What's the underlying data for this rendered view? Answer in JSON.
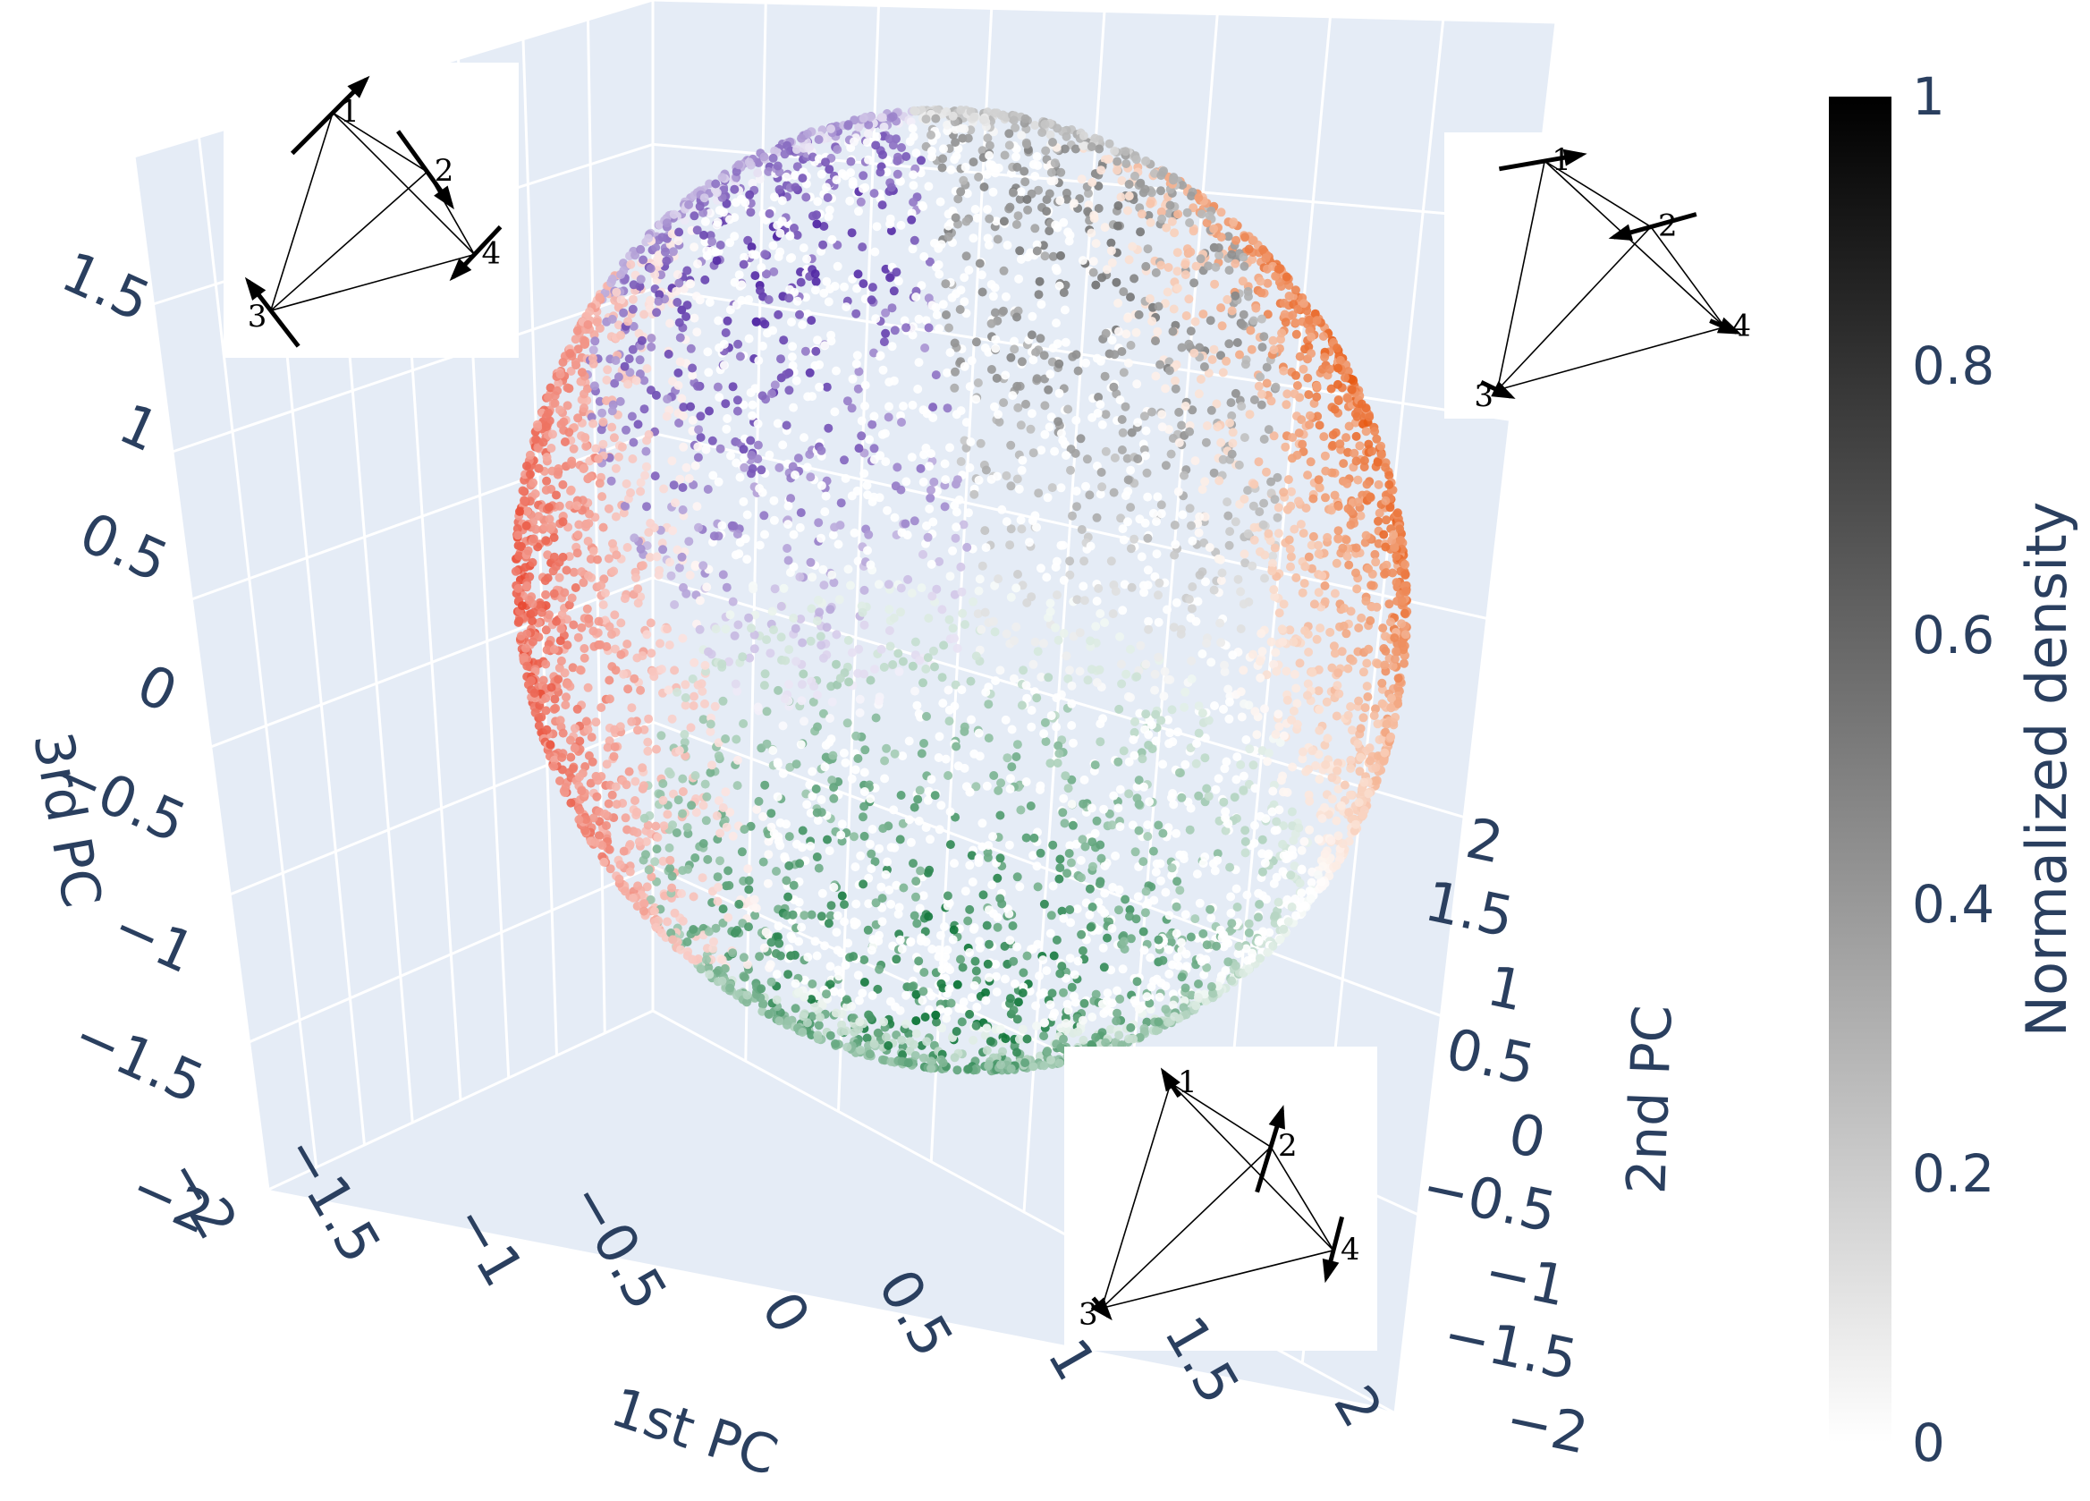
{
  "chart_data": {
    "type": "scatter",
    "dimensions": "3d",
    "axes": {
      "x": {
        "label": "1st PC",
        "range": [
          -2,
          2
        ],
        "ticks": [
          "−2",
          "−1.5",
          "−1",
          "−0.5",
          "0",
          "0.5",
          "1",
          "1.5",
          "2"
        ]
      },
      "y": {
        "label": "2nd PC",
        "range": [
          -2,
          2
        ],
        "ticks": [
          "−2",
          "−1.5",
          "−1",
          "−0.5",
          "0",
          "0.5",
          "1",
          "1.5",
          "2"
        ]
      },
      "z": {
        "label": "3rd PC",
        "range": [
          -2,
          1.5
        ],
        "ticks": [
          "−2",
          "−1.5",
          "−1",
          "−0.5",
          "0",
          "0.5",
          "1",
          "1.5"
        ]
      }
    },
    "grid": true,
    "point_cloud": {
      "shape": "sphere",
      "radius": 1.5,
      "clusters": [
        {
          "color": "#4b1fa0",
          "center": [
            -0.7,
            0.5,
            0.9
          ]
        },
        {
          "color": "#e6550d",
          "center": [
            1.1,
            0.4,
            0.5
          ]
        },
        {
          "color": "#006d2c",
          "center": [
            0.1,
            -0.5,
            -1.0
          ]
        },
        {
          "color": "#e8452e",
          "center": [
            -1.3,
            -0.4,
            -0.1
          ]
        },
        {
          "color": "#707070",
          "center": [
            0.1,
            1.0,
            1.3
          ]
        }
      ]
    },
    "colorbar": {
      "title": "Normalized density",
      "range": [
        0,
        1
      ],
      "ticks": [
        "0",
        "0.2",
        "0.4",
        "0.6",
        "0.8",
        "1"
      ],
      "colors": [
        "#ffffff",
        "#000000"
      ]
    },
    "insets": [
      {
        "nodes": [
          {
            "label": "1",
            "x": 0.37,
            "y": 0.17
          },
          {
            "label": "2",
            "x": 0.69,
            "y": 0.37
          },
          {
            "label": "3",
            "x": 0.16,
            "y": 0.84
          },
          {
            "label": "4",
            "x": 0.85,
            "y": 0.65
          }
        ],
        "arrows": [
          {
            "node": 0,
            "dx": 0.25,
            "dy": -0.25
          },
          {
            "node": 1,
            "dx": 0.18,
            "dy": 0.25
          },
          {
            "node": 2,
            "dx": -0.17,
            "dy": -0.22
          },
          {
            "node": 3,
            "dx": -0.16,
            "dy": 0.17
          }
        ]
      },
      {
        "nodes": [
          {
            "label": "1",
            "x": 0.34,
            "y": 0.1
          },
          {
            "label": "2",
            "x": 0.7,
            "y": 0.33
          },
          {
            "label": "3",
            "x": 0.18,
            "y": 0.9
          },
          {
            "label": "4",
            "x": 0.95,
            "y": 0.68
          }
        ],
        "arrows": [
          {
            "node": 0,
            "dx": 0.28,
            "dy": -0.05
          },
          {
            "node": 1,
            "dx": -0.28,
            "dy": 0.08
          },
          {
            "node": 2,
            "dx": 0.1,
            "dy": 0.05
          },
          {
            "node": 3,
            "dx": 0.09,
            "dy": 0.04
          }
        ]
      },
      {
        "nodes": [
          {
            "label": "1",
            "x": 0.34,
            "y": 0.12
          },
          {
            "label": "2",
            "x": 0.66,
            "y": 0.33
          },
          {
            "label": "3",
            "x": 0.12,
            "y": 0.86
          },
          {
            "label": "4",
            "x": 0.86,
            "y": 0.67
          }
        ],
        "arrows": [
          {
            "node": 0,
            "dx": -0.05,
            "dy": -0.08
          },
          {
            "node": 1,
            "dx": 0.08,
            "dy": -0.27
          },
          {
            "node": 2,
            "dx": 0.05,
            "dy": 0.06
          },
          {
            "node": 3,
            "dx": -0.05,
            "dy": 0.2
          }
        ]
      }
    ]
  }
}
